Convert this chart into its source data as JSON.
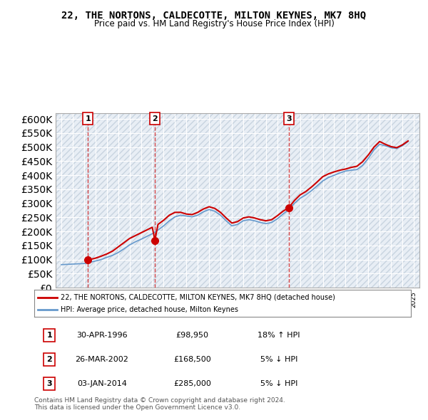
{
  "title": "22, THE NORTONS, CALDECOTTE, MILTON KEYNES, MK7 8HQ",
  "subtitle": "Price paid vs. HM Land Registry's House Price Index (HPI)",
  "hpi_label": "HPI: Average price, detached house, Milton Keynes",
  "price_label": "22, THE NORTONS, CALDECOTTE, MILTON KEYNES, MK7 8HQ (detached house)",
  "footer1": "Contains HM Land Registry data © Crown copyright and database right 2024.",
  "footer2": "This data is licensed under the Open Government Licence v3.0.",
  "sales": [
    {
      "num": 1,
      "date": "30-APR-1996",
      "price": 98950,
      "pct": "18%",
      "dir": "↑",
      "year": 1996.33
    },
    {
      "num": 2,
      "date": "26-MAR-2002",
      "price": 168500,
      "pct": "5%",
      "dir": "↓",
      "year": 2002.23
    },
    {
      "num": 3,
      "date": "03-JAN-2014",
      "price": 285000,
      "pct": "5%",
      "dir": "↓",
      "year": 2014.01
    }
  ],
  "hpi_color": "#6699cc",
  "price_color": "#cc0000",
  "vline_color": "#cc0000",
  "bg_hatch_color": "#dddddd",
  "ylim": [
    0,
    620000
  ],
  "xlim_start": 1993.5,
  "xlim_end": 2025.5,
  "hpi_data": {
    "years": [
      1994,
      1994.5,
      1995,
      1995.5,
      1996,
      1996.5,
      1997,
      1997.5,
      1998,
      1998.5,
      1999,
      1999.5,
      2000,
      2000.5,
      2001,
      2001.5,
      2002,
      2002.5,
      2003,
      2003.5,
      2004,
      2004.5,
      2005,
      2005.5,
      2006,
      2006.5,
      2007,
      2007.5,
      2008,
      2008.5,
      2009,
      2009.5,
      2010,
      2010.5,
      2011,
      2011.5,
      2012,
      2012.5,
      2013,
      2013.5,
      2014,
      2014.5,
      2015,
      2015.5,
      2016,
      2016.5,
      2017,
      2017.5,
      2018,
      2018.5,
      2019,
      2019.5,
      2020,
      2020.5,
      2021,
      2021.5,
      2022,
      2022.5,
      2023,
      2023.5,
      2024,
      2024.5
    ],
    "values": [
      82000,
      83000,
      84000,
      85000,
      86000,
      90000,
      95000,
      100000,
      108000,
      115000,
      125000,
      138000,
      152000,
      163000,
      172000,
      182000,
      192000,
      205000,
      220000,
      238000,
      252000,
      258000,
      255000,
      252000,
      258000,
      270000,
      278000,
      272000,
      258000,
      238000,
      220000,
      225000,
      238000,
      242000,
      238000,
      232000,
      228000,
      232000,
      245000,
      262000,
      278000,
      300000,
      318000,
      330000,
      345000,
      362000,
      380000,
      392000,
      400000,
      408000,
      415000,
      418000,
      420000,
      435000,
      460000,
      490000,
      510000,
      505000,
      498000,
      495000,
      505000,
      520000
    ]
  },
  "price_data": {
    "years": [
      1994.0,
      1994.5,
      1995.0,
      1995.5,
      1996.0,
      1996.33,
      1996.5,
      1997.0,
      1997.5,
      1998.0,
      1998.5,
      1999.0,
      1999.5,
      2000.0,
      2000.5,
      2001.0,
      2001.5,
      2002.0,
      2002.23,
      2002.5,
      2003.0,
      2003.5,
      2004.0,
      2004.5,
      2005.0,
      2005.5,
      2006.0,
      2006.5,
      2007.0,
      2007.5,
      2008.0,
      2008.5,
      2009.0,
      2009.5,
      2010.0,
      2010.5,
      2011.0,
      2011.5,
      2012.0,
      2012.5,
      2013.0,
      2013.5,
      2014.01,
      2014.5,
      2015.0,
      2015.5,
      2016.0,
      2016.5,
      2017.0,
      2017.5,
      2018.0,
      2018.5,
      2019.0,
      2019.5,
      2020.0,
      2020.5,
      2021.0,
      2021.5,
      2022.0,
      2022.5,
      2023.0,
      2023.5,
      2024.0,
      2024.5
    ],
    "values": [
      null,
      null,
      null,
      null,
      null,
      98950,
      100000,
      105000,
      112000,
      120000,
      130000,
      145000,
      160000,
      175000,
      185000,
      195000,
      205000,
      215000,
      168500,
      225000,
      240000,
      258000,
      268000,
      268000,
      262000,
      260000,
      268000,
      280000,
      288000,
      282000,
      268000,
      248000,
      230000,
      235000,
      248000,
      252000,
      248000,
      242000,
      238000,
      242000,
      256000,
      272000,
      285000,
      310000,
      330000,
      342000,
      358000,
      376000,
      395000,
      405000,
      412000,
      418000,
      422000,
      428000,
      432000,
      448000,
      472000,
      500000,
      520000,
      510000,
      502000,
      498000,
      508000,
      522000
    ]
  }
}
